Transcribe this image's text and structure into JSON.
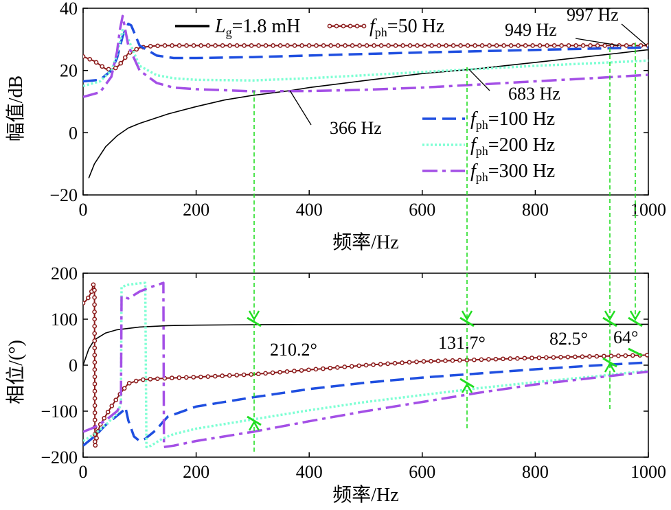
{
  "chart_data": [
    {
      "type": "line",
      "xlabel": "频率/Hz",
      "ylabel": "幅值/dB",
      "xlim": [
        0,
        1000
      ],
      "ylim": [
        -20,
        40
      ],
      "xticks": [
        "0",
        "200",
        "400",
        "600",
        "800",
        "1000"
      ],
      "yticks": [
        "−20",
        "0",
        "20",
        "40"
      ],
      "legend_position": "top and right",
      "series": [
        {
          "label_main": "L",
          "label_sub": "g",
          "label_rest": "=1.8 mH",
          "color": "#000000",
          "style": "solid",
          "x": [
            10,
            20,
            40,
            60,
            80,
            100,
            150,
            200,
            250,
            300,
            366,
            400,
            500,
            600,
            683,
            700,
            800,
            900,
            949,
            997,
            1000
          ],
          "y": [
            -14.6,
            -10,
            -4.5,
            -1,
            1.5,
            3,
            6,
            8.4,
            10.5,
            12,
            13.5,
            14.5,
            16.8,
            19,
            20.3,
            20.6,
            22.6,
            24.6,
            25.6,
            26.6,
            26.6
          ]
        },
        {
          "label_main": "f",
          "label_sub": "ph",
          "label_rest": "=50 Hz",
          "color": "#8b1a1a",
          "style": "solid-circles",
          "x": [
            0,
            20,
            40,
            50,
            60,
            70,
            80,
            100,
            120,
            140,
            200,
            300,
            400,
            500,
            600,
            700,
            800,
            900,
            1000
          ],
          "y": [
            24.5,
            23,
            20.5,
            20.3,
            21,
            23,
            25.5,
            27.3,
            27.8,
            28,
            28,
            28,
            28,
            28,
            28,
            28,
            28,
            28,
            28
          ]
        },
        {
          "label_main": "f",
          "label_sub": "ph",
          "label_rest": "=100 Hz",
          "color": "#1f4fe0",
          "style": "dashed",
          "x": [
            0,
            30,
            50,
            60,
            70,
            80,
            85,
            100,
            130,
            160,
            200,
            300,
            400,
            500,
            600,
            700,
            800,
            900,
            1000
          ],
          "y": [
            16.5,
            17,
            20,
            24,
            31,
            35,
            34.5,
            28,
            24.8,
            24,
            24,
            24.3,
            24.8,
            25.3,
            25.8,
            26.2,
            26.6,
            27,
            27.4
          ]
        },
        {
          "label_main": "f",
          "label_sub": "ph",
          "label_rest": "=200 Hz",
          "color": "#7fffd4",
          "style": "dotted",
          "x": [
            0,
            30,
            50,
            60,
            70,
            80,
            100,
            130,
            160,
            200,
            300,
            400,
            500,
            600,
            700,
            800,
            900,
            1000
          ],
          "y": [
            15,
            16.5,
            20,
            25,
            33,
            30,
            21.5,
            18.5,
            17.5,
            17,
            16.8,
            17.5,
            18.5,
            19.5,
            20.5,
            21.5,
            22.3,
            23.2
          ]
        },
        {
          "label_main": "f",
          "label_sub": "ph",
          "label_rest": "=300 Hz",
          "color": "#a450e6",
          "style": "dashdot",
          "x": [
            0,
            30,
            50,
            60,
            65,
            70,
            80,
            100,
            130,
            160,
            200,
            300,
            400,
            500,
            600,
            700,
            800,
            900,
            1000
          ],
          "y": [
            11.5,
            13,
            18,
            26,
            33,
            37.5,
            28,
            20,
            16,
            14.5,
            14,
            13.3,
            13.4,
            13.8,
            14.5,
            15.5,
            16.5,
            17.5,
            18.6
          ]
        }
      ],
      "annotations": [
        {
          "text": "366 Hz",
          "x": 366,
          "y": 13.5
        },
        {
          "text": "683 Hz",
          "x": 683,
          "y": 20.3
        },
        {
          "text": "949 Hz",
          "x": 949,
          "y": 28
        },
        {
          "text": "997 Hz",
          "x": 997,
          "y": 28
        }
      ]
    },
    {
      "type": "line",
      "xlabel": "频率/Hz",
      "ylabel": "相位/(°)",
      "xlim": [
        0,
        1000
      ],
      "ylim": [
        -200,
        200
      ],
      "xticks": [
        "0",
        "200",
        "400",
        "600",
        "800",
        "1000"
      ],
      "yticks": [
        "−200",
        "−100",
        "0",
        "100",
        "200"
      ],
      "series": [
        {
          "name": "Lg",
          "color": "#000000",
          "style": "solid",
          "x": [
            0,
            10,
            20,
            40,
            60,
            80,
            100,
            150,
            200,
            300,
            400,
            600,
            800,
            1000
          ],
          "y": [
            0,
            35,
            55,
            70,
            77,
            80,
            83,
            86,
            87,
            88,
            88.5,
            89,
            89,
            89
          ]
        },
        {
          "name": "fph50",
          "color": "#8b1a1a",
          "style": "solid-circles",
          "x": [
            0,
            5,
            10,
            15,
            18,
            20,
            21,
            25,
            30,
            40,
            50,
            60,
            70,
            80,
            100,
            150,
            200,
            300,
            400,
            500,
            600,
            700,
            800,
            900,
            1000
          ],
          "y": [
            135,
            140,
            148,
            160,
            175,
            176,
            -178,
            -150,
            -130,
            -110,
            -90,
            -72,
            -55,
            -40,
            -32,
            -28,
            -26,
            -20,
            -10,
            0,
            8,
            12,
            16,
            19,
            22
          ]
        },
        {
          "name": "fph100",
          "color": "#1f4fe0",
          "style": "dashed",
          "x": [
            0,
            20,
            40,
            60,
            70,
            75,
            80,
            90,
            100,
            110,
            120,
            130,
            140,
            150,
            200,
            300,
            400,
            500,
            600,
            700,
            800,
            900,
            1000
          ],
          "y": [
            -175,
            -155,
            -130,
            -110,
            -100,
            -92,
            -120,
            -155,
            -165,
            -160,
            -150,
            -140,
            -125,
            -112,
            -90,
            -70,
            -52,
            -38,
            -27,
            -18,
            -9,
            -1,
            6
          ]
        },
        {
          "name": "fph200",
          "color": "#7fffd4",
          "style": "dotted",
          "x": [
            0,
            20,
            40,
            60,
            65,
            67,
            68,
            80,
            100,
            110,
            112,
            113,
            120,
            140,
            160,
            200,
            300,
            400,
            500,
            600,
            700,
            800,
            900,
            1000
          ],
          "y": [
            -165,
            -150,
            -130,
            -105,
            -90,
            -80,
            170,
            175,
            178,
            179,
            -178,
            -178,
            -175,
            -160,
            -150,
            -138,
            -118,
            -98,
            -80,
            -65,
            -50,
            -37,
            -25,
            -12
          ]
        },
        {
          "name": "fph300",
          "color": "#a450e6",
          "style": "dashdot",
          "x": [
            0,
            20,
            40,
            60,
            65,
            67,
            68,
            80,
            100,
            120,
            140,
            142,
            143,
            160,
            200,
            300,
            400,
            500,
            600,
            700,
            800,
            900,
            1000
          ],
          "y": [
            -145,
            -135,
            -120,
            -100,
            -90,
            -80,
            150,
            145,
            160,
            170,
            178,
            179,
            -178,
            -175,
            -165,
            -145,
            -122,
            -100,
            -80,
            -60,
            -42,
            -28,
            -14
          ]
        }
      ],
      "annotations": [
        {
          "text": "210.2°",
          "x": 370
        },
        {
          "text": "131.7°",
          "x": 680
        },
        {
          "text": "82.5°",
          "x": 935
        },
        {
          "text": "64°",
          "x": 980
        }
      ]
    }
  ]
}
